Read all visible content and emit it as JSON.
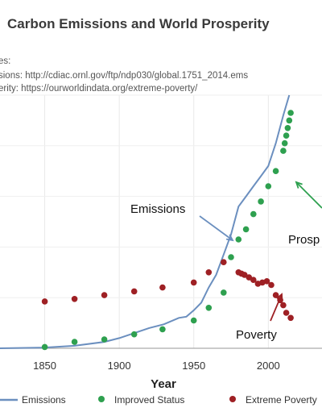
{
  "chart_data": {
    "type": "scatter",
    "title": "Carbon Emissions and World Prosperity",
    "sources": [
      "es:",
      "sions: http://cdiac.ornl.gov/ftp/ndp030/global.1751_2014.ems",
      "erity: https://ourworldindata.org/extreme-poverty/"
    ],
    "xlabel": "Year",
    "xlim": [
      1820,
      2036
    ],
    "ylim": [
      0,
      100
    ],
    "xticks": [
      1850,
      1900,
      1950,
      2000
    ],
    "grid": true,
    "legend_position": "bottom",
    "annotations": [
      {
        "text": "Emissions",
        "target": "emissions"
      },
      {
        "text": "Prosp",
        "target": "improved_status"
      },
      {
        "text": "Poverty",
        "target": "extreme_poverty"
      }
    ],
    "series": [
      {
        "name": "Emissions",
        "style": "line",
        "color": "#6b8fbf",
        "x": [
          1820,
          1850,
          1870,
          1890,
          1900,
          1910,
          1920,
          1930,
          1940,
          1945,
          1950,
          1955,
          1960,
          1965,
          1970,
          1975,
          1980,
          1985,
          1990,
          1995,
          2000,
          2005,
          2010,
          2014
        ],
        "values": [
          0,
          0.3,
          1,
          2.5,
          4,
          6,
          8,
          9.5,
          12,
          12.5,
          15,
          18,
          24,
          29,
          37,
          45,
          56,
          60,
          64,
          68,
          72,
          81,
          92,
          100
        ]
      },
      {
        "name": "Improved Status",
        "style": "points",
        "color": "#2ea04f",
        "x": [
          1850,
          1870,
          1890,
          1910,
          1929,
          1950,
          1960,
          1970,
          1975,
          1980,
          1985,
          1990,
          1995,
          2000,
          2005,
          2010,
          2011,
          2012,
          2013,
          2014,
          2015
        ],
        "values": [
          0.5,
          2.5,
          3.5,
          5.5,
          7.5,
          11,
          16,
          22,
          36,
          43,
          47,
          53,
          58,
          64,
          70,
          78,
          81,
          84,
          87,
          90,
          93
        ]
      },
      {
        "name": "Extreme Poverty",
        "style": "points",
        "color": "#9e2024",
        "x": [
          1850,
          1870,
          1890,
          1910,
          1929,
          1950,
          1960,
          1970,
          1980,
          1982,
          1984,
          1987,
          1990,
          1993,
          1996,
          1999,
          2002,
          2005,
          2008,
          2010,
          2012,
          2015
        ],
        "values": [
          18.5,
          19.5,
          21,
          22.5,
          24,
          26,
          30,
          34,
          30,
          29.5,
          29,
          28,
          27,
          25.5,
          26,
          26.5,
          25,
          21,
          19,
          17,
          14,
          12
        ]
      }
    ]
  }
}
